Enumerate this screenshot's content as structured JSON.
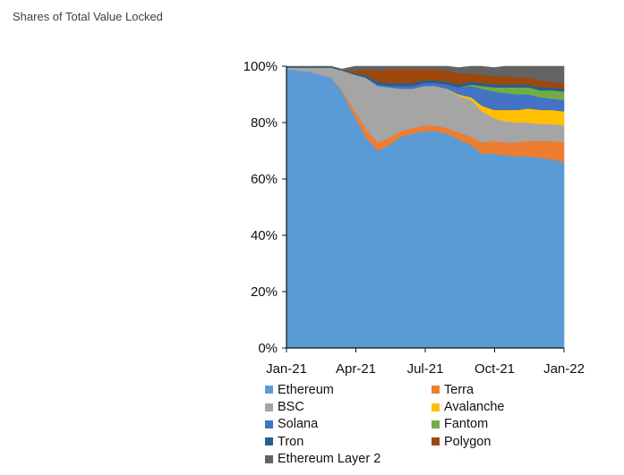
{
  "title": "Shares of Total Value Locked",
  "chart_data": {
    "type": "area",
    "stacked": true,
    "title": "Shares of Total Value Locked",
    "xlabel": "",
    "ylabel": "",
    "x_ticks": [
      "Jan-21",
      "Apr-21",
      "Jul-21",
      "Oct-21",
      "Jan-22"
    ],
    "y_ticks": [
      "0%",
      "20%",
      "40%",
      "60%",
      "80%",
      "100%"
    ],
    "ylim": [
      0,
      100
    ],
    "legend_placement": "bottom",
    "x": [
      "2021-01-01",
      "2021-01-15",
      "2021-02-01",
      "2021-02-15",
      "2021-03-01",
      "2021-03-15",
      "2021-04-01",
      "2021-04-15",
      "2021-05-01",
      "2021-05-15",
      "2021-06-01",
      "2021-06-15",
      "2021-07-01",
      "2021-07-15",
      "2021-08-01",
      "2021-08-15",
      "2021-09-01",
      "2021-09-15",
      "2021-10-01",
      "2021-10-15",
      "2021-11-01",
      "2021-11-15",
      "2021-12-01",
      "2021-12-15",
      "2022-01-01"
    ],
    "series": [
      {
        "name": "Ethereum",
        "color": "#5b9bd5",
        "values": [
          99,
          98.5,
          98,
          97,
          96,
          91,
          82,
          75,
          70,
          72,
          75,
          76,
          77,
          77,
          76,
          74,
          72,
          69,
          69,
          68.5,
          68,
          68,
          67.5,
          67,
          66
        ]
      },
      {
        "name": "Terra",
        "color": "#ed7d31",
        "values": [
          0,
          0,
          0,
          0,
          0,
          0.5,
          2,
          3,
          3,
          2.5,
          2,
          2,
          2,
          2,
          2,
          2.5,
          3,
          4,
          4.5,
          4.5,
          5,
          5.5,
          6,
          6.5,
          7
        ]
      },
      {
        "name": "BSC",
        "color": "#a5a5a5",
        "values": [
          0.5,
          1,
          1.5,
          2.5,
          3.5,
          7,
          13,
          18,
          20,
          18,
          15,
          14,
          14,
          14,
          14,
          13,
          13,
          11,
          8,
          7.5,
          7,
          6.5,
          6,
          6,
          6
        ]
      },
      {
        "name": "Avalanche",
        "color": "#ffc000",
        "values": [
          0,
          0,
          0,
          0,
          0,
          0,
          0,
          0,
          0,
          0,
          0,
          0,
          0,
          0,
          0,
          0.5,
          1,
          2,
          3,
          4,
          4.5,
          5,
          5,
          5,
          5
        ]
      },
      {
        "name": "Solana",
        "color": "#4472c4",
        "values": [
          0,
          0,
          0,
          0,
          0,
          0,
          0,
          0,
          0.5,
          0.5,
          1,
          1,
          1,
          1,
          1.5,
          2.5,
          4,
          6,
          6.5,
          6,
          5.5,
          5,
          4.5,
          4,
          4
        ]
      },
      {
        "name": "Fantom",
        "color": "#70ad47",
        "values": [
          0,
          0,
          0,
          0,
          0,
          0,
          0,
          0,
          0,
          0,
          0,
          0,
          0,
          0,
          0,
          0,
          0.5,
          1,
          1.5,
          2,
          2.5,
          2.5,
          2.5,
          3,
          3
        ]
      },
      {
        "name": "Tron",
        "color": "#255e91",
        "values": [
          0.3,
          0.3,
          0.3,
          0.3,
          0.3,
          0.3,
          0.5,
          0.8,
          1,
          1,
          1,
          1,
          1,
          1,
          1,
          1,
          1,
          1,
          1,
          1,
          1,
          1,
          1,
          1,
          1
        ]
      },
      {
        "name": "Polygon",
        "color": "#9e480e",
        "values": [
          0,
          0,
          0,
          0,
          0,
          0,
          1,
          2,
          4,
          5,
          5,
          5,
          4,
          4,
          4,
          4,
          3,
          3,
          3,
          3,
          2.5,
          2.5,
          2.5,
          2,
          2
        ]
      },
      {
        "name": "Ethereum Layer 2",
        "color": "#636363",
        "values": [
          0.2,
          0.2,
          0.2,
          0.2,
          0.2,
          0.2,
          1.5,
          1.2,
          1.5,
          1,
          1,
          1,
          1,
          1,
          1.5,
          2,
          2.5,
          3,
          3,
          3.5,
          4,
          4,
          5,
          5.5,
          6
        ]
      }
    ]
  }
}
